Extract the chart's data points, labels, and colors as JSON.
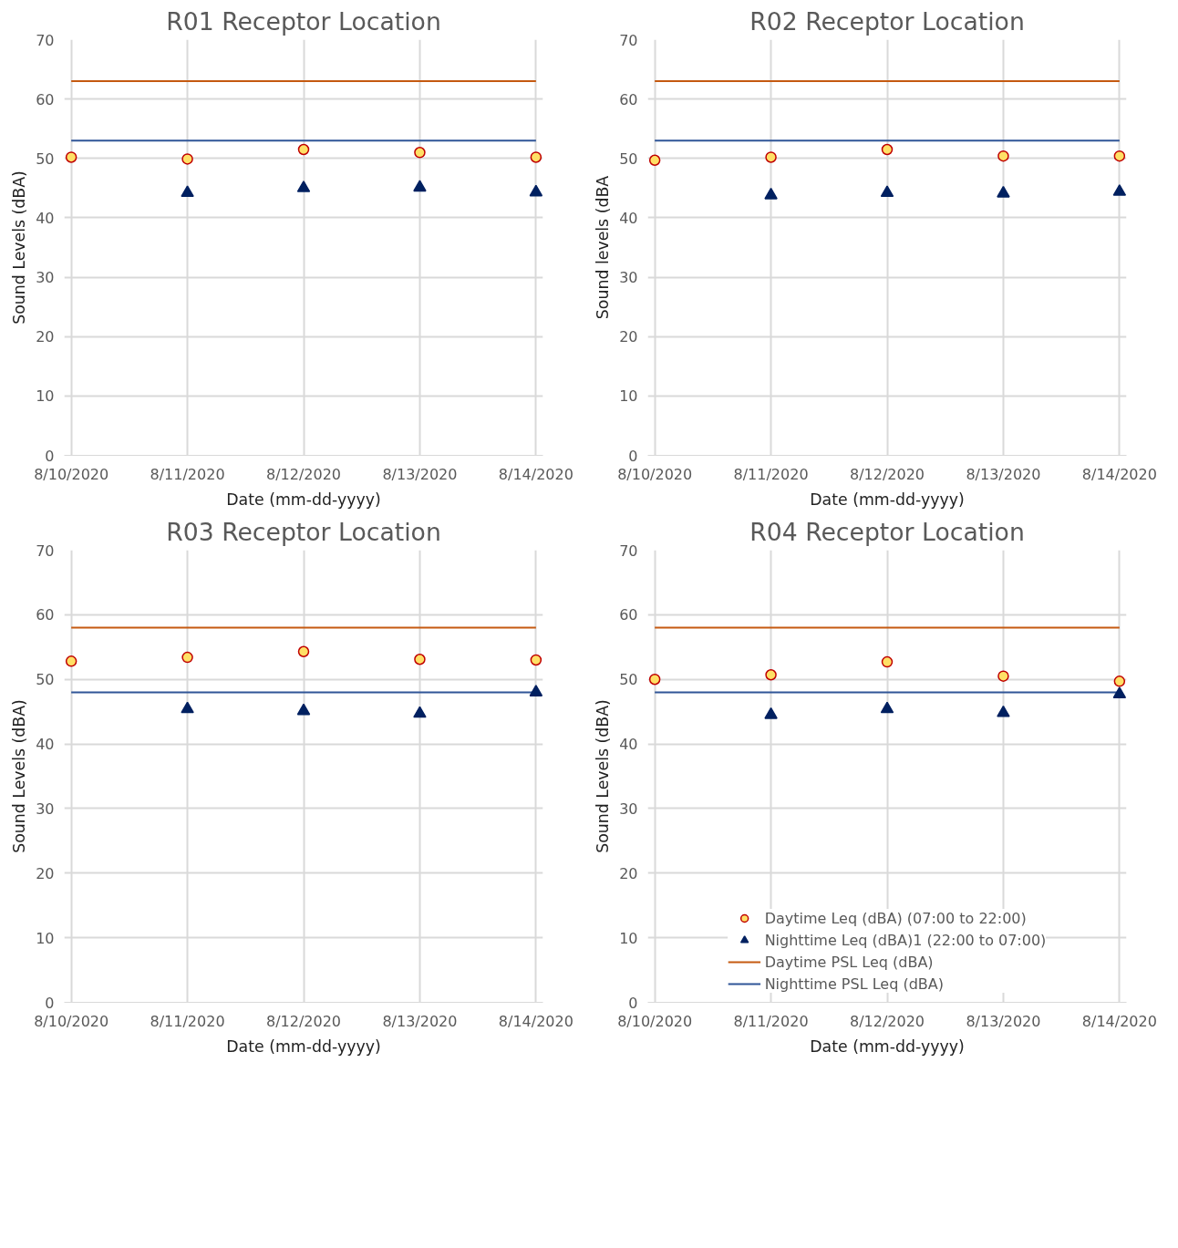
{
  "chart_data": [
    {
      "type": "scatter",
      "title": "R01 Receptor Location",
      "xlabel": "Date (mm-dd-yyyy)",
      "ylabel": "Sound Levels (dBA)",
      "categories": [
        "8/10/2020",
        "8/11/2020",
        "8/12/2020",
        "8/13/2020",
        "8/14/2020"
      ],
      "ylim": [
        0,
        70
      ],
      "yticks": [
        0,
        10,
        20,
        30,
        40,
        50,
        60,
        70
      ],
      "grid": true,
      "series": [
        {
          "color": "#ffe066",
          "marker": "circle",
          "values": [
            50.2,
            49.9,
            51.5,
            51.0,
            50.2
          ]
        },
        {
          "color": "#002060",
          "marker": "triangle",
          "values": [
            null,
            44.2,
            45.0,
            45.1,
            44.3
          ]
        },
        {
          "type": "line",
          "color": "#c55a11",
          "marker": "none",
          "values": [
            63,
            63,
            63,
            63,
            63
          ]
        },
        {
          "type": "line",
          "color": "#2f5597",
          "marker": "none",
          "values": [
            53,
            53,
            53,
            53,
            53
          ]
        }
      ]
    },
    {
      "type": "scatter",
      "title": "R02 Receptor Location",
      "xlabel": "Date (mm-dd-yyyy)",
      "ylabel": "Sound levels (dBA",
      "categories": [
        "8/10/2020",
        "8/11/2020",
        "8/12/2020",
        "8/13/2020",
        "8/14/2020"
      ],
      "ylim": [
        0,
        70
      ],
      "yticks": [
        0,
        10,
        20,
        30,
        40,
        50,
        60,
        70
      ],
      "grid": true,
      "series": [
        {
          "color": "#ffe066",
          "marker": "circle",
          "values": [
            49.7,
            50.2,
            51.5,
            50.4,
            50.4
          ]
        },
        {
          "color": "#002060",
          "marker": "triangle",
          "values": [
            null,
            43.8,
            44.2,
            44.1,
            44.4
          ]
        },
        {
          "type": "line",
          "color": "#c55a11",
          "marker": "none",
          "values": [
            63,
            63,
            63,
            63,
            63
          ]
        },
        {
          "type": "line",
          "color": "#2f5597",
          "marker": "none",
          "values": [
            53,
            53,
            53,
            53,
            53
          ]
        }
      ]
    },
    {
      "type": "scatter",
      "title": "R03 Receptor Location",
      "xlabel": "Date (mm-dd-yyyy)",
      "ylabel": "Sound Levels (dBA)",
      "categories": [
        "8/10/2020",
        "8/11/2020",
        "8/12/2020",
        "8/13/2020",
        "8/14/2020"
      ],
      "ylim": [
        0,
        70
      ],
      "yticks": [
        0,
        10,
        20,
        30,
        40,
        50,
        60,
        70
      ],
      "grid": true,
      "series": [
        {
          "color": "#ffe066",
          "marker": "circle",
          "values": [
            52.8,
            53.4,
            54.3,
            53.1,
            53.0
          ]
        },
        {
          "color": "#002060",
          "marker": "triangle",
          "values": [
            null,
            45.4,
            45.1,
            44.7,
            48.0
          ]
        },
        {
          "type": "line",
          "color": "#c55a11",
          "marker": "none",
          "values": [
            58,
            58,
            58,
            58,
            58
          ]
        },
        {
          "type": "line",
          "color": "#2f5597",
          "marker": "none",
          "values": [
            48,
            48,
            48,
            48,
            48
          ]
        }
      ]
    },
    {
      "type": "scatter",
      "title": "R04 Receptor Location",
      "xlabel": "Date (mm-dd-yyyy)",
      "ylabel": "Sound Levels (dBA)",
      "categories": [
        "8/10/2020",
        "8/11/2020",
        "8/12/2020",
        "8/13/2020",
        "8/14/2020"
      ],
      "ylim": [
        0,
        70
      ],
      "yticks": [
        0,
        10,
        20,
        30,
        40,
        50,
        60,
        70
      ],
      "grid": true,
      "legend": "bottom",
      "series": [
        {
          "name": "Daytime Leq (dBA) (07:00 to 22:00)",
          "color": "#ffe066",
          "marker": "circle",
          "values": [
            50.0,
            50.7,
            52.7,
            50.5,
            49.7
          ]
        },
        {
          "name": "Nighttime Leq (dBA)1 (22:00 to 07:00)",
          "color": "#002060",
          "marker": "triangle",
          "values": [
            null,
            44.5,
            45.4,
            44.8,
            47.7
          ]
        },
        {
          "name": "Daytime PSL Leq (dBA)",
          "type": "line",
          "color": "#c55a11",
          "marker": "none",
          "values": [
            58,
            58,
            58,
            58,
            58
          ]
        },
        {
          "name": "Nighttime PSL Leq (dBA)",
          "type": "line",
          "color": "#2f5597",
          "marker": "none",
          "values": [
            48,
            48,
            48,
            48,
            48
          ]
        }
      ]
    }
  ]
}
